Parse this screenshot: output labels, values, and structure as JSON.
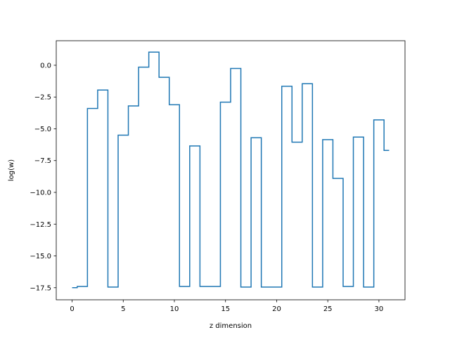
{
  "chart_data": {
    "type": "line",
    "drawstyle": "steps-mid",
    "xlabel": "z dimension",
    "ylabel": "log(w)",
    "xlim": [
      -1.55,
      32.55
    ],
    "ylim": [
      -18.45,
      1.93
    ],
    "xticks": [
      0,
      5,
      10,
      15,
      20,
      25,
      30
    ],
    "yticks": [
      0.0,
      -2.5,
      -5.0,
      -7.5,
      -10.0,
      -12.5,
      -15.0,
      -17.5
    ],
    "ytick_labels": [
      "0.0",
      "−2.5",
      "−5.0",
      "−7.5",
      "−10.0",
      "−12.5",
      "−15.0",
      "−17.5"
    ],
    "grid": false,
    "series": [
      {
        "color": "#1f77b4",
        "x": [
          0,
          1,
          2,
          3,
          4,
          5,
          6,
          7,
          8,
          9,
          10,
          11,
          12,
          13,
          14,
          15,
          16,
          17,
          18,
          19,
          20,
          21,
          22,
          23,
          24,
          25,
          26,
          27,
          28,
          29,
          30,
          31
        ],
        "y": [
          -17.5,
          -17.4,
          -3.4,
          -1.95,
          -17.45,
          -5.5,
          -3.2,
          -0.15,
          1.03,
          -0.95,
          -3.1,
          -17.4,
          -6.35,
          -17.4,
          -17.4,
          -2.9,
          -0.25,
          -17.45,
          -5.7,
          -17.45,
          -17.45,
          -1.65,
          -6.05,
          -1.45,
          -17.45,
          -5.85,
          -8.9,
          -17.4,
          -5.65,
          -17.45,
          -4.3,
          -6.7
        ]
      }
    ]
  }
}
